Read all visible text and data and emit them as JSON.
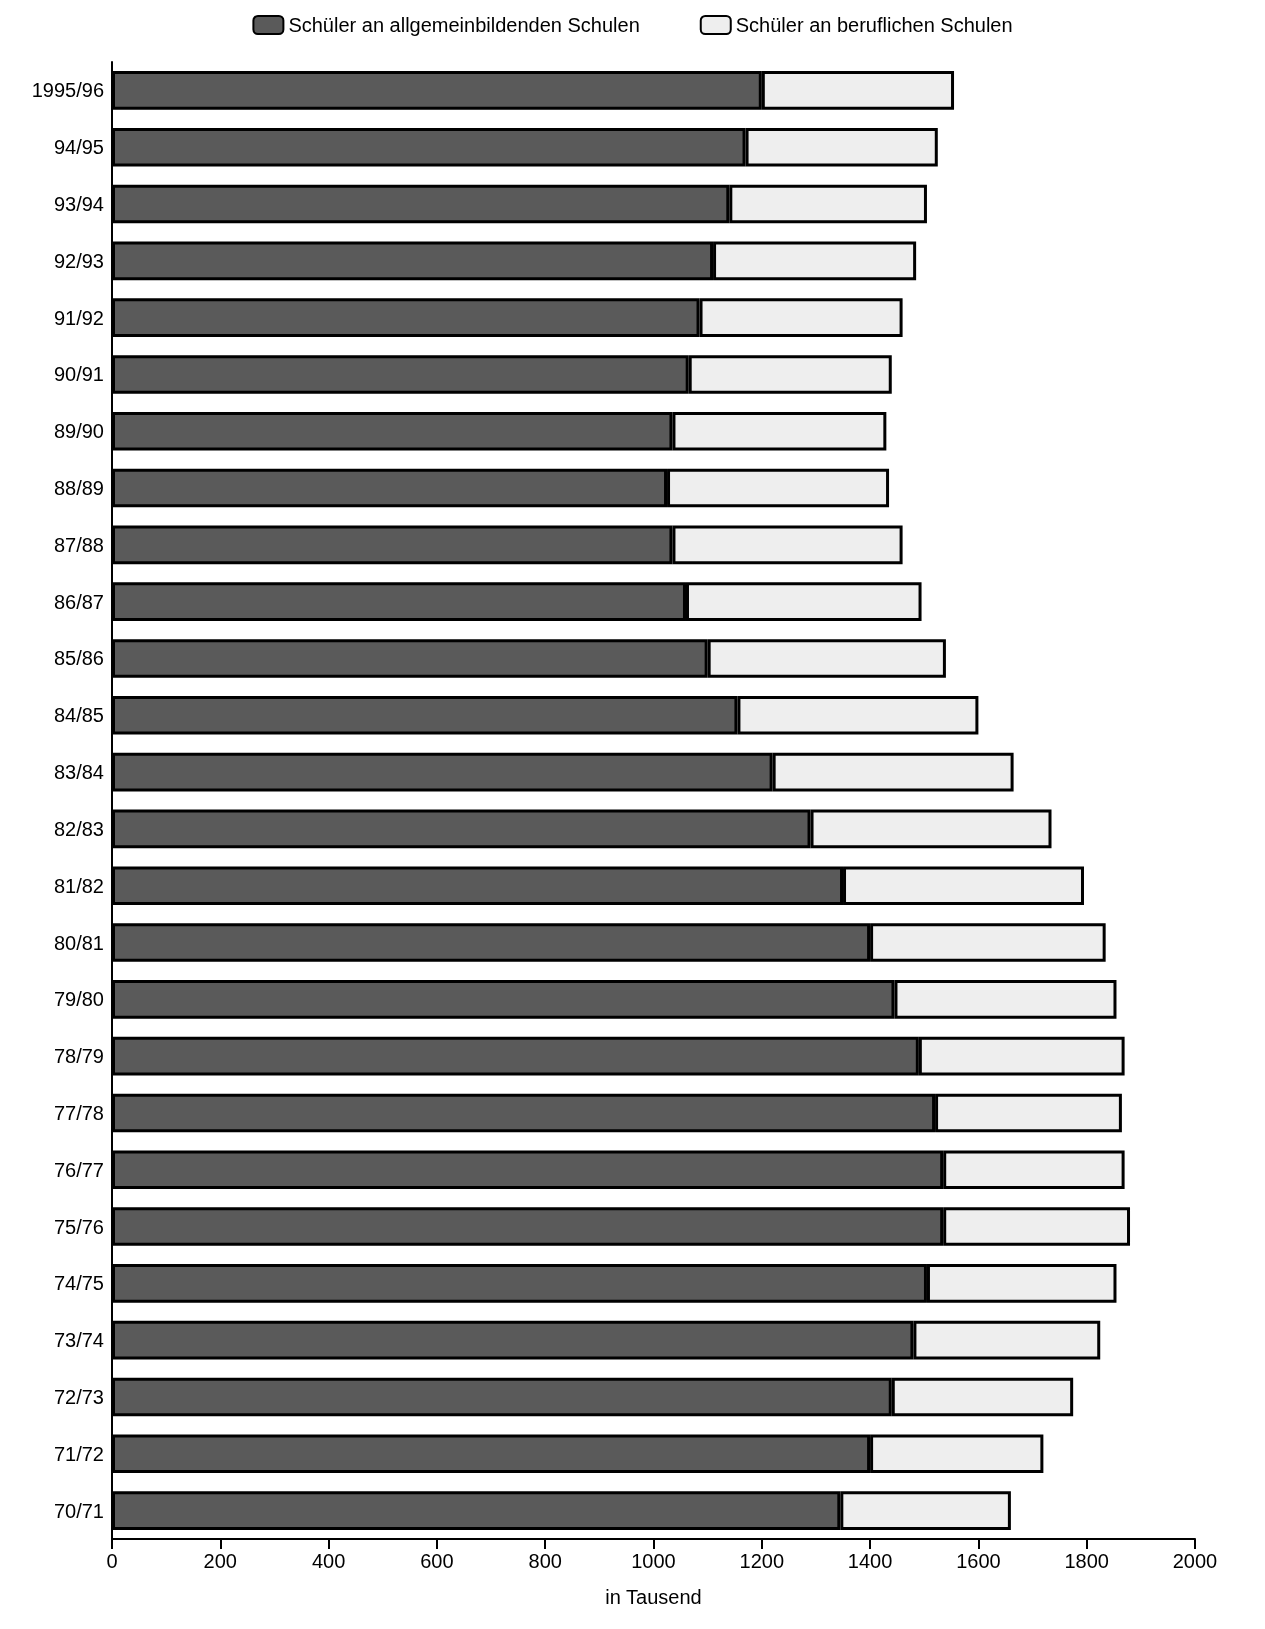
{
  "chart_data": {
    "type": "bar",
    "orientation": "horizontal",
    "stacked": true,
    "xlabel": "in Tausend",
    "categories": [
      "1995/96",
      "94/95",
      "93/94",
      "92/93",
      "91/92",
      "90/91",
      "89/90",
      "88/89",
      "87/88",
      "86/87",
      "85/86",
      "84/85",
      "83/84",
      "82/83",
      "81/82",
      "80/81",
      "79/80",
      "78/79",
      "77/78",
      "76/77",
      "75/76",
      "74/75",
      "73/74",
      "72/73",
      "71/72",
      "70/71"
    ],
    "series": [
      {
        "name": "Schüler an allgemeinbildenden Schulen",
        "color": "#5a5a5a",
        "values": [
          1200,
          1170,
          1140,
          1110,
          1085,
          1065,
          1035,
          1025,
          1035,
          1060,
          1100,
          1155,
          1220,
          1290,
          1350,
          1400,
          1445,
          1490,
          1520,
          1535,
          1535,
          1505,
          1480,
          1440,
          1400,
          1345
        ]
      },
      {
        "name": "Schüler an beruflichen Schulen",
        "color": "#eeeeee",
        "values": [
          355,
          355,
          365,
          375,
          375,
          375,
          395,
          410,
          425,
          435,
          440,
          445,
          445,
          445,
          445,
          435,
          410,
          380,
          345,
          335,
          345,
          350,
          345,
          335,
          320,
          315
        ]
      }
    ],
    "xlim": [
      0,
      2000
    ],
    "xticks": [
      0,
      200,
      400,
      600,
      800,
      1000,
      1200,
      1400,
      1600,
      1800,
      2000
    ],
    "grid": false,
    "legend": "top"
  }
}
